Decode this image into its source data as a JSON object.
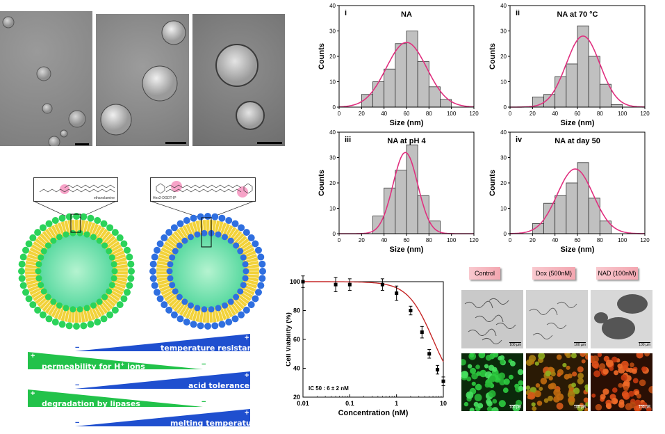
{
  "tem_images": [
    {
      "id": "tem-a"
    },
    {
      "id": "tem-b"
    },
    {
      "id": "tem-c"
    }
  ],
  "histograms": [
    {
      "panel": "i",
      "title": "NA",
      "xlabel": "Size (nm)",
      "ylabel": "Counts"
    },
    {
      "panel": "ii",
      "title": "NA at 70 °C",
      "xlabel": "Size (nm)",
      "ylabel": "Counts"
    },
    {
      "panel": "iii",
      "title": "NA at pH 4",
      "xlabel": "Size (nm)",
      "ylabel": "Counts"
    },
    {
      "panel": "iv",
      "title": "NA at day 50",
      "xlabel": "Size (nm)",
      "ylabel": "Counts"
    }
  ],
  "chart_data": [
    {
      "type": "bar",
      "panel": "i",
      "title": "NA",
      "xlabel": "Size (nm)",
      "ylabel": "Counts",
      "bin_centers": [
        25,
        35,
        45,
        55,
        65,
        75,
        85,
        95
      ],
      "values": [
        5,
        10,
        15,
        25,
        30,
        18,
        8,
        3
      ],
      "fit": {
        "type": "gaussian",
        "mean": 60,
        "sd": 18,
        "peak": 25.5
      },
      "xlim": [
        0,
        120
      ],
      "ylim": [
        0,
        40
      ],
      "xticks": [
        0,
        20,
        40,
        60,
        80,
        100,
        120
      ],
      "yticks": [
        0,
        10,
        20,
        30,
        40
      ],
      "bar_color": "#c0c0c0",
      "fit_color": "#e0307f"
    },
    {
      "type": "bar",
      "panel": "ii",
      "title": "NA at 70 °C",
      "xlabel": "Size (nm)",
      "ylabel": "Counts",
      "bin_centers": [
        25,
        35,
        45,
        55,
        65,
        75,
        85,
        95
      ],
      "values": [
        4,
        5,
        12,
        17,
        32,
        20,
        9,
        1
      ],
      "fit": {
        "type": "gaussian",
        "mean": 65,
        "sd": 15,
        "peak": 28
      },
      "xlim": [
        0,
        120
      ],
      "ylim": [
        0,
        40
      ],
      "xticks": [
        0,
        20,
        40,
        60,
        80,
        100,
        120
      ],
      "yticks": [
        0,
        10,
        20,
        30,
        40
      ],
      "bar_color": "#c0c0c0",
      "fit_color": "#e0307f"
    },
    {
      "type": "bar",
      "panel": "iii",
      "title": "NA at pH 4",
      "xlabel": "Size (nm)",
      "ylabel": "Counts",
      "bin_centers": [
        35,
        45,
        55,
        65,
        75,
        85
      ],
      "values": [
        7,
        18,
        25,
        35,
        15,
        5
      ],
      "fit": {
        "type": "gaussian",
        "mean": 59,
        "sd": 11,
        "peak": 32
      },
      "xlim": [
        0,
        120
      ],
      "ylim": [
        0,
        40
      ],
      "xticks": [
        0,
        20,
        40,
        60,
        80,
        100,
        120
      ],
      "yticks": [
        0,
        10,
        20,
        30,
        40
      ],
      "bar_color": "#c0c0c0",
      "fit_color": "#e0307f"
    },
    {
      "type": "bar",
      "panel": "iv",
      "title": "NA at day 50",
      "xlabel": "Size (nm)",
      "ylabel": "Counts",
      "bin_centers": [
        25,
        35,
        45,
        55,
        65,
        75,
        85
      ],
      "values": [
        4,
        12,
        15,
        20,
        28,
        14,
        5
      ],
      "fit": {
        "type": "gaussian",
        "mean": 58,
        "sd": 16,
        "peak": 25.5
      },
      "xlim": [
        0,
        120
      ],
      "ylim": [
        0,
        40
      ],
      "xticks": [
        0,
        20,
        40,
        60,
        80,
        100,
        120
      ],
      "yticks": [
        0,
        10,
        20,
        30,
        40
      ],
      "bar_color": "#c0c0c0",
      "fit_color": "#e0307f"
    },
    {
      "type": "scatter",
      "panel": "viability",
      "xlabel": "Concentration (nM)",
      "ylabel": "Cell Viability (%)",
      "xscale": "log",
      "xlim": [
        0.01,
        10
      ],
      "ylim": [
        20,
        100
      ],
      "xticks": [
        "0.01",
        "0.1",
        "1",
        "10"
      ],
      "yticks": [
        20,
        40,
        60,
        80,
        100
      ],
      "x": [
        0.01,
        0.05,
        0.1,
        0.5,
        1,
        2,
        3.5,
        5,
        7.5,
        10
      ],
      "y": [
        100,
        98,
        98,
        98,
        92,
        80,
        65,
        50,
        39,
        31
      ],
      "err": [
        4,
        5,
        4,
        4,
        5,
        3,
        4,
        3,
        3,
        3
      ],
      "fit": {
        "type": "logistic",
        "top": 100,
        "bottom": 20,
        "ic50": 6,
        "hill": 1.6,
        "color": "#c62828"
      },
      "annotation": "IC 50 : 6 ± 2 nM"
    }
  ],
  "micrographs": {
    "labels": [
      "Control",
      "Dox  (500nM)",
      "NAD (100nM)"
    ],
    "scale_labels": [
      "100 µm",
      "100 µm",
      "100 µm",
      "100 µm",
      "100 µm",
      "100 µm"
    ]
  },
  "membranes": {
    "left_label": "ethanolamine",
    "right_label": "Hex2-DGDT-IP",
    "left_color": "#2bd35a",
    "right_color": "#2f6fe0",
    "lipid_color": "#f2d23a"
  },
  "wedges": [
    {
      "label": "temperature resistance",
      "direction": "increase",
      "color": "#1f4fcf",
      "plus": "+",
      "minus": "−"
    },
    {
      "label": "permeability for H",
      "label_sup": "+",
      "label_tail": " ions",
      "direction": "decrease",
      "color": "#22c24a",
      "plus": "+",
      "minus": "−"
    },
    {
      "label": "acid tolerance",
      "direction": "increase",
      "color": "#1f4fcf",
      "plus": "+",
      "minus": "−"
    },
    {
      "label": "degradation by lipases",
      "direction": "decrease",
      "color": "#22c24a",
      "plus": "+",
      "minus": "−"
    },
    {
      "label": "melting temperature",
      "direction": "increase",
      "color": "#1f4fcf",
      "plus": "+",
      "minus": "−"
    }
  ]
}
